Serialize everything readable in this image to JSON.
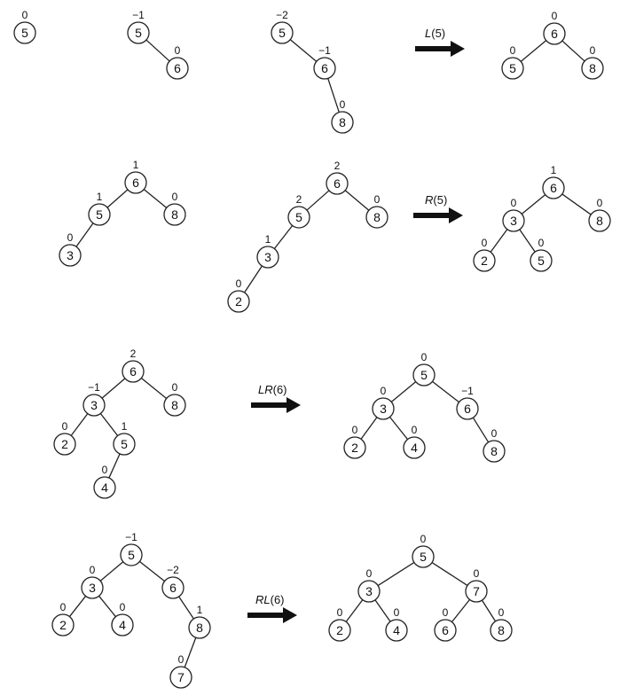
{
  "trees": [
    {
      "id": "t1",
      "nodes": [
        {
          "v": "5",
          "b": "0"
        }
      ],
      "edges": []
    },
    {
      "id": "t2",
      "nodes": [
        {
          "v": "5",
          "b": "−1"
        },
        {
          "v": "6",
          "b": "0"
        }
      ],
      "edges": [
        [
          0,
          1
        ]
      ]
    },
    {
      "id": "t3",
      "nodes": [
        {
          "v": "5",
          "b": "−2"
        },
        {
          "v": "6",
          "b": "−1"
        },
        {
          "v": "8",
          "b": "0"
        }
      ],
      "edges": [
        [
          0,
          1
        ],
        [
          1,
          2
        ]
      ]
    },
    {
      "id": "t4",
      "nodes": [
        {
          "v": "6",
          "b": "0"
        },
        {
          "v": "5",
          "b": "0"
        },
        {
          "v": "8",
          "b": "0"
        }
      ],
      "edges": [
        [
          0,
          1
        ],
        [
          0,
          2
        ]
      ]
    },
    {
      "id": "t5",
      "nodes": [
        {
          "v": "6",
          "b": "1"
        },
        {
          "v": "5",
          "b": "1"
        },
        {
          "v": "8",
          "b": "0"
        },
        {
          "v": "3",
          "b": "0"
        }
      ],
      "edges": [
        [
          0,
          1
        ],
        [
          0,
          2
        ],
        [
          1,
          3
        ]
      ]
    },
    {
      "id": "t6",
      "nodes": [
        {
          "v": "6",
          "b": "2"
        },
        {
          "v": "5",
          "b": "2"
        },
        {
          "v": "8",
          "b": "0"
        },
        {
          "v": "3",
          "b": "1"
        },
        {
          "v": "2",
          "b": "0"
        }
      ],
      "edges": [
        [
          0,
          1
        ],
        [
          0,
          2
        ],
        [
          1,
          3
        ],
        [
          3,
          4
        ]
      ]
    },
    {
      "id": "t7",
      "nodes": [
        {
          "v": "6",
          "b": "1"
        },
        {
          "v": "3",
          "b": "0"
        },
        {
          "v": "8",
          "b": "0"
        },
        {
          "v": "2",
          "b": "0"
        },
        {
          "v": "5",
          "b": "0"
        }
      ],
      "edges": [
        [
          0,
          1
        ],
        [
          0,
          2
        ],
        [
          1,
          3
        ],
        [
          1,
          4
        ]
      ]
    },
    {
      "id": "t8",
      "nodes": [
        {
          "v": "6",
          "b": "2"
        },
        {
          "v": "3",
          "b": "−1"
        },
        {
          "v": "8",
          "b": "0"
        },
        {
          "v": "2",
          "b": "0"
        },
        {
          "v": "5",
          "b": "1"
        },
        {
          "v": "4",
          "b": "0"
        }
      ],
      "edges": [
        [
          0,
          1
        ],
        [
          0,
          2
        ],
        [
          1,
          3
        ],
        [
          1,
          4
        ],
        [
          4,
          5
        ]
      ]
    },
    {
      "id": "t9",
      "nodes": [
        {
          "v": "5",
          "b": "0"
        },
        {
          "v": "3",
          "b": "0"
        },
        {
          "v": "6",
          "b": "−1"
        },
        {
          "v": "2",
          "b": "0"
        },
        {
          "v": "4",
          "b": "0"
        },
        {
          "v": "8",
          "b": "0"
        }
      ],
      "edges": [
        [
          0,
          1
        ],
        [
          0,
          2
        ],
        [
          1,
          3
        ],
        [
          1,
          4
        ],
        [
          2,
          5
        ]
      ]
    },
    {
      "id": "t10",
      "nodes": [
        {
          "v": "5",
          "b": "−1"
        },
        {
          "v": "3",
          "b": "0"
        },
        {
          "v": "6",
          "b": "−2"
        },
        {
          "v": "2",
          "b": "0"
        },
        {
          "v": "4",
          "b": "0"
        },
        {
          "v": "8",
          "b": "1"
        },
        {
          "v": "7",
          "b": "0"
        }
      ],
      "edges": [
        [
          0,
          1
        ],
        [
          0,
          2
        ],
        [
          1,
          3
        ],
        [
          1,
          4
        ],
        [
          2,
          5
        ],
        [
          5,
          6
        ]
      ]
    },
    {
      "id": "t11",
      "nodes": [
        {
          "v": "5",
          "b": "0"
        },
        {
          "v": "3",
          "b": "0"
        },
        {
          "v": "7",
          "b": "0"
        },
        {
          "v": "2",
          "b": "0"
        },
        {
          "v": "4",
          "b": "0"
        },
        {
          "v": "6",
          "b": "0"
        },
        {
          "v": "8",
          "b": "0"
        }
      ],
      "edges": [
        [
          0,
          1
        ],
        [
          0,
          2
        ],
        [
          1,
          3
        ],
        [
          1,
          4
        ],
        [
          2,
          5
        ],
        [
          2,
          6
        ]
      ]
    }
  ],
  "operations": [
    {
      "id": "op1",
      "name": "L",
      "arg": "(5)"
    },
    {
      "id": "op2",
      "name": "R",
      "arg": "(5)"
    },
    {
      "id": "op3",
      "name": "LR",
      "arg": "(6)"
    },
    {
      "id": "op4",
      "name": "RL",
      "arg": "(6)"
    }
  ]
}
